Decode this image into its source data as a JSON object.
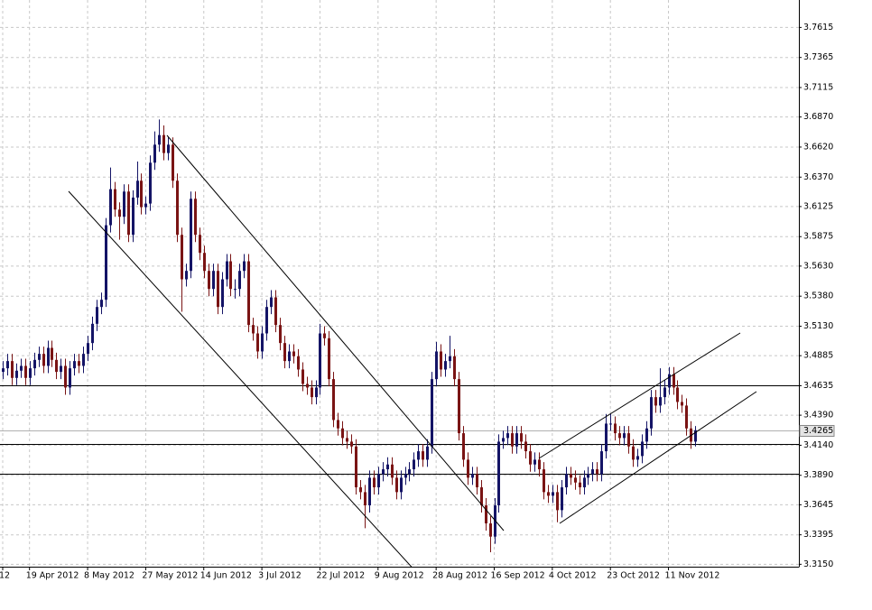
{
  "chart_data": {
    "type": "candlestick",
    "up_color": "#141466",
    "down_color": "#7a1414",
    "level_color": "#000000",
    "grid": true,
    "ylim": [
      3.313,
      3.7843
    ],
    "yticks": [
      {
        "value": 3.315,
        "label": "3.3150"
      },
      3.3395,
      3.3645,
      {
        "value": 3.389,
        "label": "3.3890"
      },
      {
        "value": 3.414,
        "label": "3.4140"
      },
      {
        "value": 3.439,
        "label": "3.4390"
      },
      3.4635,
      3.4885,
      {
        "value": 3.513,
        "label": "3.5130"
      },
      {
        "value": 3.538,
        "label": "3.5380"
      },
      {
        "value": 3.563,
        "label": "3.5630"
      },
      3.5875,
      3.6125,
      {
        "value": 3.637,
        "label": "3.6370"
      },
      {
        "value": 3.662,
        "label": "3.6620"
      },
      {
        "value": 3.687,
        "label": "3.6870"
      },
      3.7115,
      3.7365,
      3.7615
    ],
    "levels": [
      3.4635,
      3.415,
      3.39
    ],
    "current_price": 3.4265,
    "categories": [
      "12",
      null,
      null,
      null,
      null,
      null,
      "19 Apr 2012",
      null,
      null,
      null,
      null,
      null,
      null,
      null,
      null,
      null,
      null,
      null,
      null,
      "8 May 2012",
      null,
      null,
      null,
      null,
      null,
      null,
      null,
      null,
      null,
      null,
      null,
      null,
      "27 May 2012",
      null,
      null,
      null,
      null,
      null,
      null,
      null,
      null,
      null,
      null,
      null,
      null,
      "14 Jun 2012",
      null,
      null,
      null,
      null,
      null,
      null,
      null,
      null,
      null,
      null,
      null,
      null,
      "3 Jul 2012",
      null,
      null,
      null,
      null,
      null,
      null,
      null,
      null,
      null,
      null,
      null,
      null,
      "22 Jul 2012",
      null,
      null,
      null,
      null,
      null,
      null,
      null,
      null,
      null,
      null,
      null,
      null,
      "9 Aug 2012",
      null,
      null,
      null,
      null,
      null,
      null,
      null,
      null,
      null,
      null,
      null,
      null,
      "28 Aug 2012",
      null,
      null,
      null,
      null,
      null,
      null,
      null,
      null,
      null,
      null,
      null,
      null,
      "16 Sep 2012",
      null,
      null,
      null,
      null,
      null,
      null,
      null,
      null,
      null,
      null,
      null,
      null,
      "4 Oct 2012",
      null,
      null,
      null,
      null,
      null,
      null,
      null,
      null,
      null,
      null,
      null,
      null,
      "23 Oct 2012",
      null,
      null,
      null,
      null,
      null,
      null,
      null,
      null,
      null,
      null,
      null,
      null,
      "11 Nov 2012",
      null,
      null,
      null,
      null,
      null,
      null
    ],
    "ohlc": [
      [
        3.475,
        3.484,
        3.469,
        3.478
      ],
      [
        3.478,
        3.49,
        3.472,
        3.484
      ],
      [
        3.484,
        3.49,
        3.464,
        3.47
      ],
      [
        3.47,
        3.482,
        3.464,
        3.476
      ],
      [
        3.476,
        3.486,
        3.47,
        3.48
      ],
      [
        3.48,
        3.486,
        3.464,
        3.47
      ],
      [
        3.47,
        3.484,
        3.464,
        3.478
      ],
      [
        3.478,
        3.491,
        3.472,
        3.485
      ],
      [
        3.485,
        3.496,
        3.479,
        3.49
      ],
      [
        3.49,
        3.496,
        3.474,
        3.48
      ],
      [
        3.48,
        3.501,
        3.474,
        3.495
      ],
      [
        3.495,
        3.501,
        3.479,
        3.485
      ],
      [
        3.485,
        3.491,
        3.469,
        3.475
      ],
      [
        3.475,
        3.486,
        3.469,
        3.48
      ],
      [
        3.48,
        3.486,
        3.456,
        3.462
      ],
      [
        3.462,
        3.484,
        3.456,
        3.478
      ],
      [
        3.478,
        3.49,
        3.472,
        3.484
      ],
      [
        3.484,
        3.49,
        3.474,
        3.48
      ],
      [
        3.48,
        3.496,
        3.474,
        3.49
      ],
      [
        3.49,
        3.505,
        3.484,
        3.499
      ],
      [
        3.499,
        3.521,
        3.493,
        3.515
      ],
      [
        3.515,
        3.535,
        3.509,
        3.529
      ],
      [
        3.529,
        3.541,
        3.523,
        3.535
      ],
      [
        3.535,
        3.603,
        3.529,
        3.597
      ],
      [
        3.597,
        3.645,
        3.591,
        3.627
      ],
      [
        3.627,
        3.633,
        3.604,
        3.61
      ],
      [
        3.61,
        3.616,
        3.585,
        3.604
      ],
      [
        3.604,
        3.631,
        3.598,
        3.625
      ],
      [
        3.625,
        3.631,
        3.583,
        3.589
      ],
      [
        3.589,
        3.626,
        3.583,
        3.62
      ],
      [
        3.62,
        3.65,
        3.614,
        3.634
      ],
      [
        3.634,
        3.64,
        3.606,
        3.612
      ],
      [
        3.612,
        3.621,
        3.606,
        3.615
      ],
      [
        3.615,
        3.655,
        3.609,
        3.649
      ],
      [
        3.649,
        3.675,
        3.643,
        3.664
      ],
      [
        3.664,
        3.685,
        3.658,
        3.672
      ],
      [
        3.672,
        3.68,
        3.651,
        3.657
      ],
      [
        3.657,
        3.67,
        3.651,
        3.664
      ],
      [
        3.664,
        3.67,
        3.628,
        3.634
      ],
      [
        3.634,
        3.64,
        3.583,
        3.589
      ],
      [
        3.589,
        3.595,
        3.525,
        3.552
      ],
      [
        3.552,
        3.565,
        3.546,
        3.559
      ],
      [
        3.559,
        3.625,
        3.553,
        3.619
      ],
      [
        3.619,
        3.625,
        3.583,
        3.589
      ],
      [
        3.589,
        3.595,
        3.568,
        3.574
      ],
      [
        3.574,
        3.58,
        3.553,
        3.559
      ],
      [
        3.559,
        3.565,
        3.538,
        3.544
      ],
      [
        3.544,
        3.565,
        3.538,
        3.559
      ],
      [
        3.559,
        3.565,
        3.523,
        3.529
      ],
      [
        3.529,
        3.558,
        3.523,
        3.552
      ],
      [
        3.552,
        3.573,
        3.546,
        3.567
      ],
      [
        3.567,
        3.573,
        3.538,
        3.544
      ],
      [
        3.544,
        3.552,
        3.536,
        3.544
      ],
      [
        3.544,
        3.565,
        3.538,
        3.559
      ],
      [
        3.559,
        3.573,
        3.553,
        3.567
      ],
      [
        3.567,
        3.573,
        3.508,
        3.514
      ],
      [
        3.514,
        3.52,
        3.501,
        3.507
      ],
      [
        3.507,
        3.513,
        3.486,
        3.492
      ],
      [
        3.492,
        3.513,
        3.486,
        3.507
      ],
      [
        3.507,
        3.535,
        3.501,
        3.529
      ],
      [
        3.529,
        3.543,
        3.523,
        3.537
      ],
      [
        3.537,
        3.543,
        3.508,
        3.514
      ],
      [
        3.514,
        3.52,
        3.493,
        3.499
      ],
      [
        3.499,
        3.505,
        3.478,
        3.484
      ],
      [
        3.484,
        3.498,
        3.478,
        3.492
      ],
      [
        3.492,
        3.498,
        3.482,
        3.488
      ],
      [
        3.488,
        3.494,
        3.471,
        3.477
      ],
      [
        3.477,
        3.483,
        3.459,
        3.465
      ],
      [
        3.465,
        3.471,
        3.456,
        3.462
      ],
      [
        3.462,
        3.468,
        3.448,
        3.454
      ],
      [
        3.454,
        3.468,
        3.448,
        3.462
      ],
      [
        3.462,
        3.515,
        3.456,
        3.507
      ],
      [
        3.507,
        3.513,
        3.497,
        3.503
      ],
      [
        3.503,
        3.509,
        3.463,
        3.469
      ],
      [
        3.469,
        3.475,
        3.429,
        3.435
      ],
      [
        3.435,
        3.441,
        3.422,
        3.428
      ],
      [
        3.428,
        3.434,
        3.414,
        3.42
      ],
      [
        3.42,
        3.426,
        3.411,
        3.417
      ],
      [
        3.417,
        3.423,
        3.407,
        3.413
      ],
      [
        3.413,
        3.419,
        3.373,
        3.379
      ],
      [
        3.379,
        3.385,
        3.369,
        3.375
      ],
      [
        3.375,
        3.381,
        3.345,
        3.364
      ],
      [
        3.364,
        3.393,
        3.358,
        3.387
      ],
      [
        3.387,
        3.393,
        3.373,
        3.379
      ],
      [
        3.379,
        3.396,
        3.373,
        3.39
      ],
      [
        3.39,
        3.4,
        3.384,
        3.394
      ],
      [
        3.394,
        3.404,
        3.388,
        3.398
      ],
      [
        3.398,
        3.404,
        3.381,
        3.387
      ],
      [
        3.387,
        3.393,
        3.369,
        3.375
      ],
      [
        3.375,
        3.393,
        3.369,
        3.387
      ],
      [
        3.387,
        3.396,
        3.381,
        3.39
      ],
      [
        3.39,
        3.4,
        3.384,
        3.394
      ],
      [
        3.394,
        3.408,
        3.388,
        3.402
      ],
      [
        3.402,
        3.415,
        3.396,
        3.409
      ],
      [
        3.409,
        3.415,
        3.396,
        3.402
      ],
      [
        3.402,
        3.419,
        3.396,
        3.413
      ],
      [
        3.413,
        3.475,
        3.407,
        3.469
      ],
      [
        3.469,
        3.5,
        3.463,
        3.492
      ],
      [
        3.492,
        3.498,
        3.471,
        3.477
      ],
      [
        3.477,
        3.49,
        3.471,
        3.484
      ],
      [
        3.484,
        3.505,
        3.478,
        3.488
      ],
      [
        3.488,
        3.494,
        3.463,
        3.469
      ],
      [
        3.469,
        3.475,
        3.418,
        3.424
      ],
      [
        3.424,
        3.43,
        3.396,
        3.402
      ],
      [
        3.402,
        3.408,
        3.381,
        3.387
      ],
      [
        3.387,
        3.396,
        3.381,
        3.39
      ],
      [
        3.39,
        3.396,
        3.373,
        3.379
      ],
      [
        3.379,
        3.385,
        3.358,
        3.364
      ],
      [
        3.364,
        3.37,
        3.343,
        3.349
      ],
      [
        3.349,
        3.355,
        3.325,
        3.338
      ],
      [
        3.338,
        3.37,
        3.332,
        3.364
      ],
      [
        3.364,
        3.423,
        3.358,
        3.417
      ],
      [
        3.417,
        3.426,
        3.411,
        3.42
      ],
      [
        3.42,
        3.43,
        3.414,
        3.424
      ],
      [
        3.424,
        3.43,
        3.407,
        3.413
      ],
      [
        3.413,
        3.43,
        3.407,
        3.424
      ],
      [
        3.424,
        3.43,
        3.411,
        3.417
      ],
      [
        3.417,
        3.423,
        3.403,
        3.409
      ],
      [
        3.409,
        3.415,
        3.392,
        3.398
      ],
      [
        3.398,
        3.408,
        3.392,
        3.402
      ],
      [
        3.402,
        3.408,
        3.388,
        3.394
      ],
      [
        3.394,
        3.4,
        3.369,
        3.375
      ],
      [
        3.375,
        3.381,
        3.366,
        3.372
      ],
      [
        3.372,
        3.381,
        3.366,
        3.375
      ],
      [
        3.375,
        3.381,
        3.35,
        3.36
      ],
      [
        3.36,
        3.385,
        3.354,
        3.379
      ],
      [
        3.379,
        3.396,
        3.373,
        3.39
      ],
      [
        3.39,
        3.396,
        3.381,
        3.387
      ],
      [
        3.387,
        3.393,
        3.377,
        3.383
      ],
      [
        3.383,
        3.389,
        3.373,
        3.379
      ],
      [
        3.379,
        3.393,
        3.373,
        3.387
      ],
      [
        3.387,
        3.396,
        3.381,
        3.39
      ],
      [
        3.39,
        3.4,
        3.384,
        3.394
      ],
      [
        3.394,
        3.4,
        3.384,
        3.39
      ],
      [
        3.39,
        3.415,
        3.384,
        3.409
      ],
      [
        3.409,
        3.44,
        3.403,
        3.432
      ],
      [
        3.432,
        3.44,
        3.426,
        3.432
      ],
      [
        3.432,
        3.438,
        3.418,
        3.424
      ],
      [
        3.424,
        3.43,
        3.414,
        3.42
      ],
      [
        3.42,
        3.43,
        3.414,
        3.424
      ],
      [
        3.424,
        3.43,
        3.407,
        3.413
      ],
      [
        3.413,
        3.419,
        3.396,
        3.402
      ],
      [
        3.402,
        3.411,
        3.396,
        3.405
      ],
      [
        3.405,
        3.423,
        3.399,
        3.417
      ],
      [
        3.417,
        3.434,
        3.411,
        3.428
      ],
      [
        3.428,
        3.46,
        3.422,
        3.454
      ],
      [
        3.454,
        3.46,
        3.441,
        3.447
      ],
      [
        3.447,
        3.478,
        3.441,
        3.454
      ],
      [
        3.454,
        3.468,
        3.448,
        3.462
      ],
      [
        3.462,
        3.479,
        3.456,
        3.473
      ],
      [
        3.473,
        3.479,
        3.456,
        3.462
      ],
      [
        3.462,
        3.468,
        3.444,
        3.45
      ],
      [
        3.45,
        3.456,
        3.441,
        3.447
      ],
      [
        3.447,
        3.453,
        3.422,
        3.428
      ],
      [
        3.428,
        3.434,
        3.411,
        3.417
      ],
      [
        3.417,
        3.43,
        3.413,
        3.4265
      ]
    ]
  }
}
